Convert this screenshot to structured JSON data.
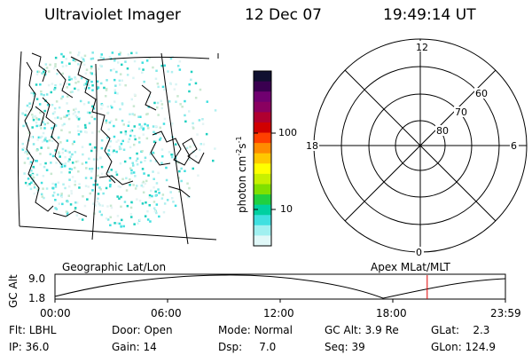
{
  "header": {
    "title": "Ultraviolet Imager",
    "date": "12 Dec 07",
    "time": "19:49:14 UT"
  },
  "colorbar": {
    "label_html_parts": [
      "photon cm",
      "-2",
      "s",
      "-1"
    ],
    "ticks": [
      "100",
      "10"
    ],
    "colors": [
      "#101030",
      "#3a0050",
      "#700070",
      "#8a0060",
      "#b00030",
      "#d00000",
      "#ff4000",
      "#ff8c00",
      "#ffc800",
      "#ffff00",
      "#c8f000",
      "#80e000",
      "#20d040",
      "#00d0a0",
      "#40e0e0",
      "#a0f0f0",
      "#e0f8f8"
    ]
  },
  "polar": {
    "mlt_labels": {
      "top": "12",
      "bottom": "0",
      "left": "18",
      "right": "6"
    },
    "lat_labels": [
      "60",
      "70",
      "80"
    ]
  },
  "timeline": {
    "left_label": "Geographic Lat/Lon",
    "right_label": "Apex  MLat/MLT",
    "y_axis_title": "GC Alt",
    "y_ticks": [
      "9.0",
      "1.8"
    ],
    "x_ticks": [
      "00:00",
      "06:00",
      "12:00",
      "18:00",
      "23:59"
    ],
    "marker_time_hours": 19.82
  },
  "info": {
    "row1": [
      {
        "k": "Flt:",
        "v": "LBHL"
      },
      {
        "k": "Door:",
        "v": "Open"
      },
      {
        "k": "Mode:",
        "v": "Normal"
      },
      {
        "k": "GC Alt:",
        "v": "3.9 Re"
      },
      {
        "k": "GLat:",
        "v": "2.3"
      }
    ],
    "row2": [
      {
        "k": "IP:",
        "v": "36.0"
      },
      {
        "k": "Gain:",
        "v": "14"
      },
      {
        "k": "Dsp:",
        "v": "7.0"
      },
      {
        "k": "Seq:",
        "v": "39"
      },
      {
        "k": "GLon:",
        "v": "124.9"
      }
    ]
  }
}
